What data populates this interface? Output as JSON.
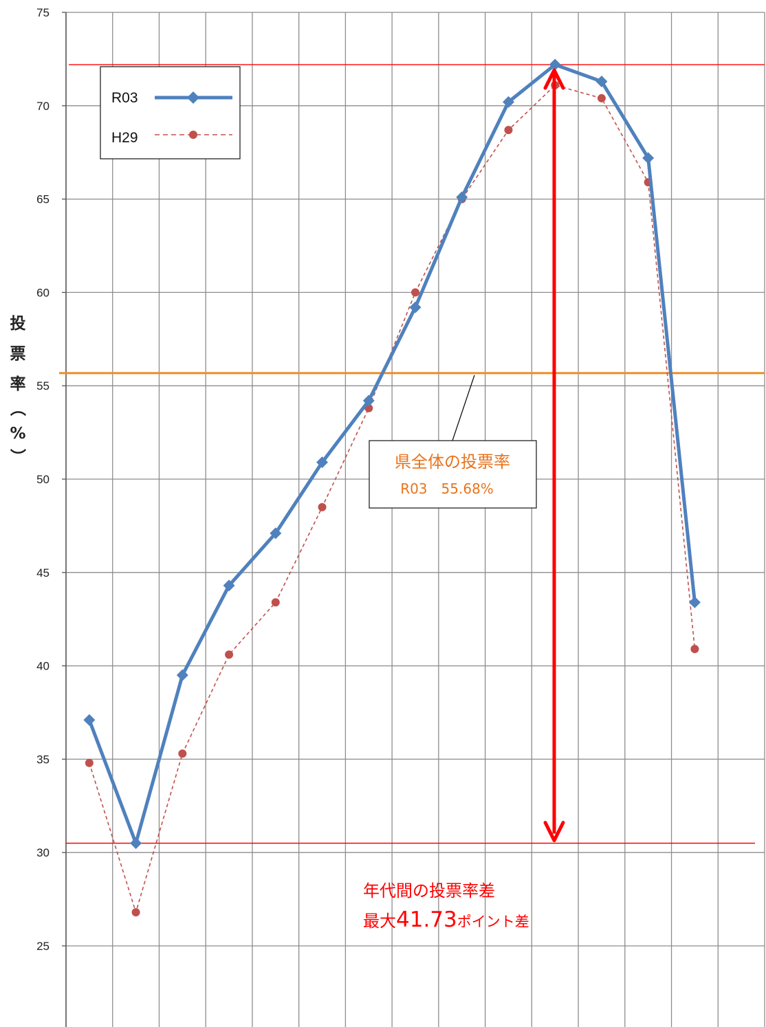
{
  "chart_data": {
    "type": "line",
    "ylabel": "投票率（%）",
    "ylim": [
      20,
      75
    ],
    "yticks": [
      25,
      30,
      35,
      40,
      45,
      50,
      55,
      60,
      65,
      70,
      75
    ],
    "grid": true,
    "legend_position": "top-left",
    "series": [
      {
        "name": "R03",
        "color": "#4f81bd",
        "marker": "diamond",
        "values": [
          37.1,
          30.5,
          39.5,
          44.3,
          47.1,
          50.9,
          54.2,
          59.2,
          65.1,
          70.2,
          72.2,
          71.3,
          67.2,
          43.4
        ]
      },
      {
        "name": "H29",
        "color": "#c0504d",
        "marker": "circle",
        "values": [
          34.8,
          26.8,
          35.3,
          40.6,
          43.4,
          48.5,
          53.8,
          60.0,
          65.0,
          68.7,
          71.1,
          70.4,
          65.9,
          40.9
        ]
      }
    ],
    "reference_lines": {
      "prefecture_rate": 55.68,
      "max_line": 72.2,
      "min_line": 30.5
    },
    "annotations": {
      "prefecture_title": "県全体の投票率",
      "prefecture_value": "R03　55.68%",
      "diff_line1": "年代間の投票率差",
      "diff_line2_prefix": "最大",
      "diff_line2_number": "41.73",
      "diff_line2_suffix": "ポイント差"
    }
  }
}
